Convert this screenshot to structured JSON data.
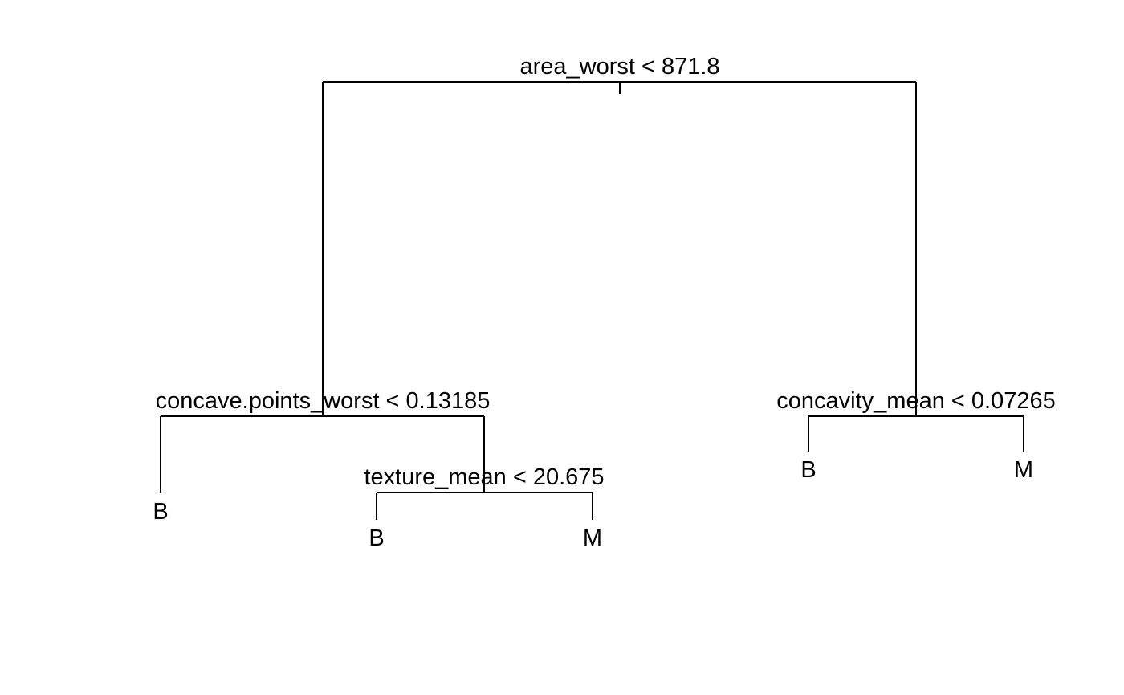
{
  "tree": {
    "splits": {
      "root": "area_worst < 871.8",
      "left": "concave.points_worst < 0.13185",
      "left_right": "texture_mean < 20.675",
      "right": "concavity_mean < 0.07265"
    },
    "leaves": {
      "left_left": "B",
      "left_right_left": "B",
      "left_right_right": "M",
      "right_left": "B",
      "right_right": "M"
    }
  }
}
